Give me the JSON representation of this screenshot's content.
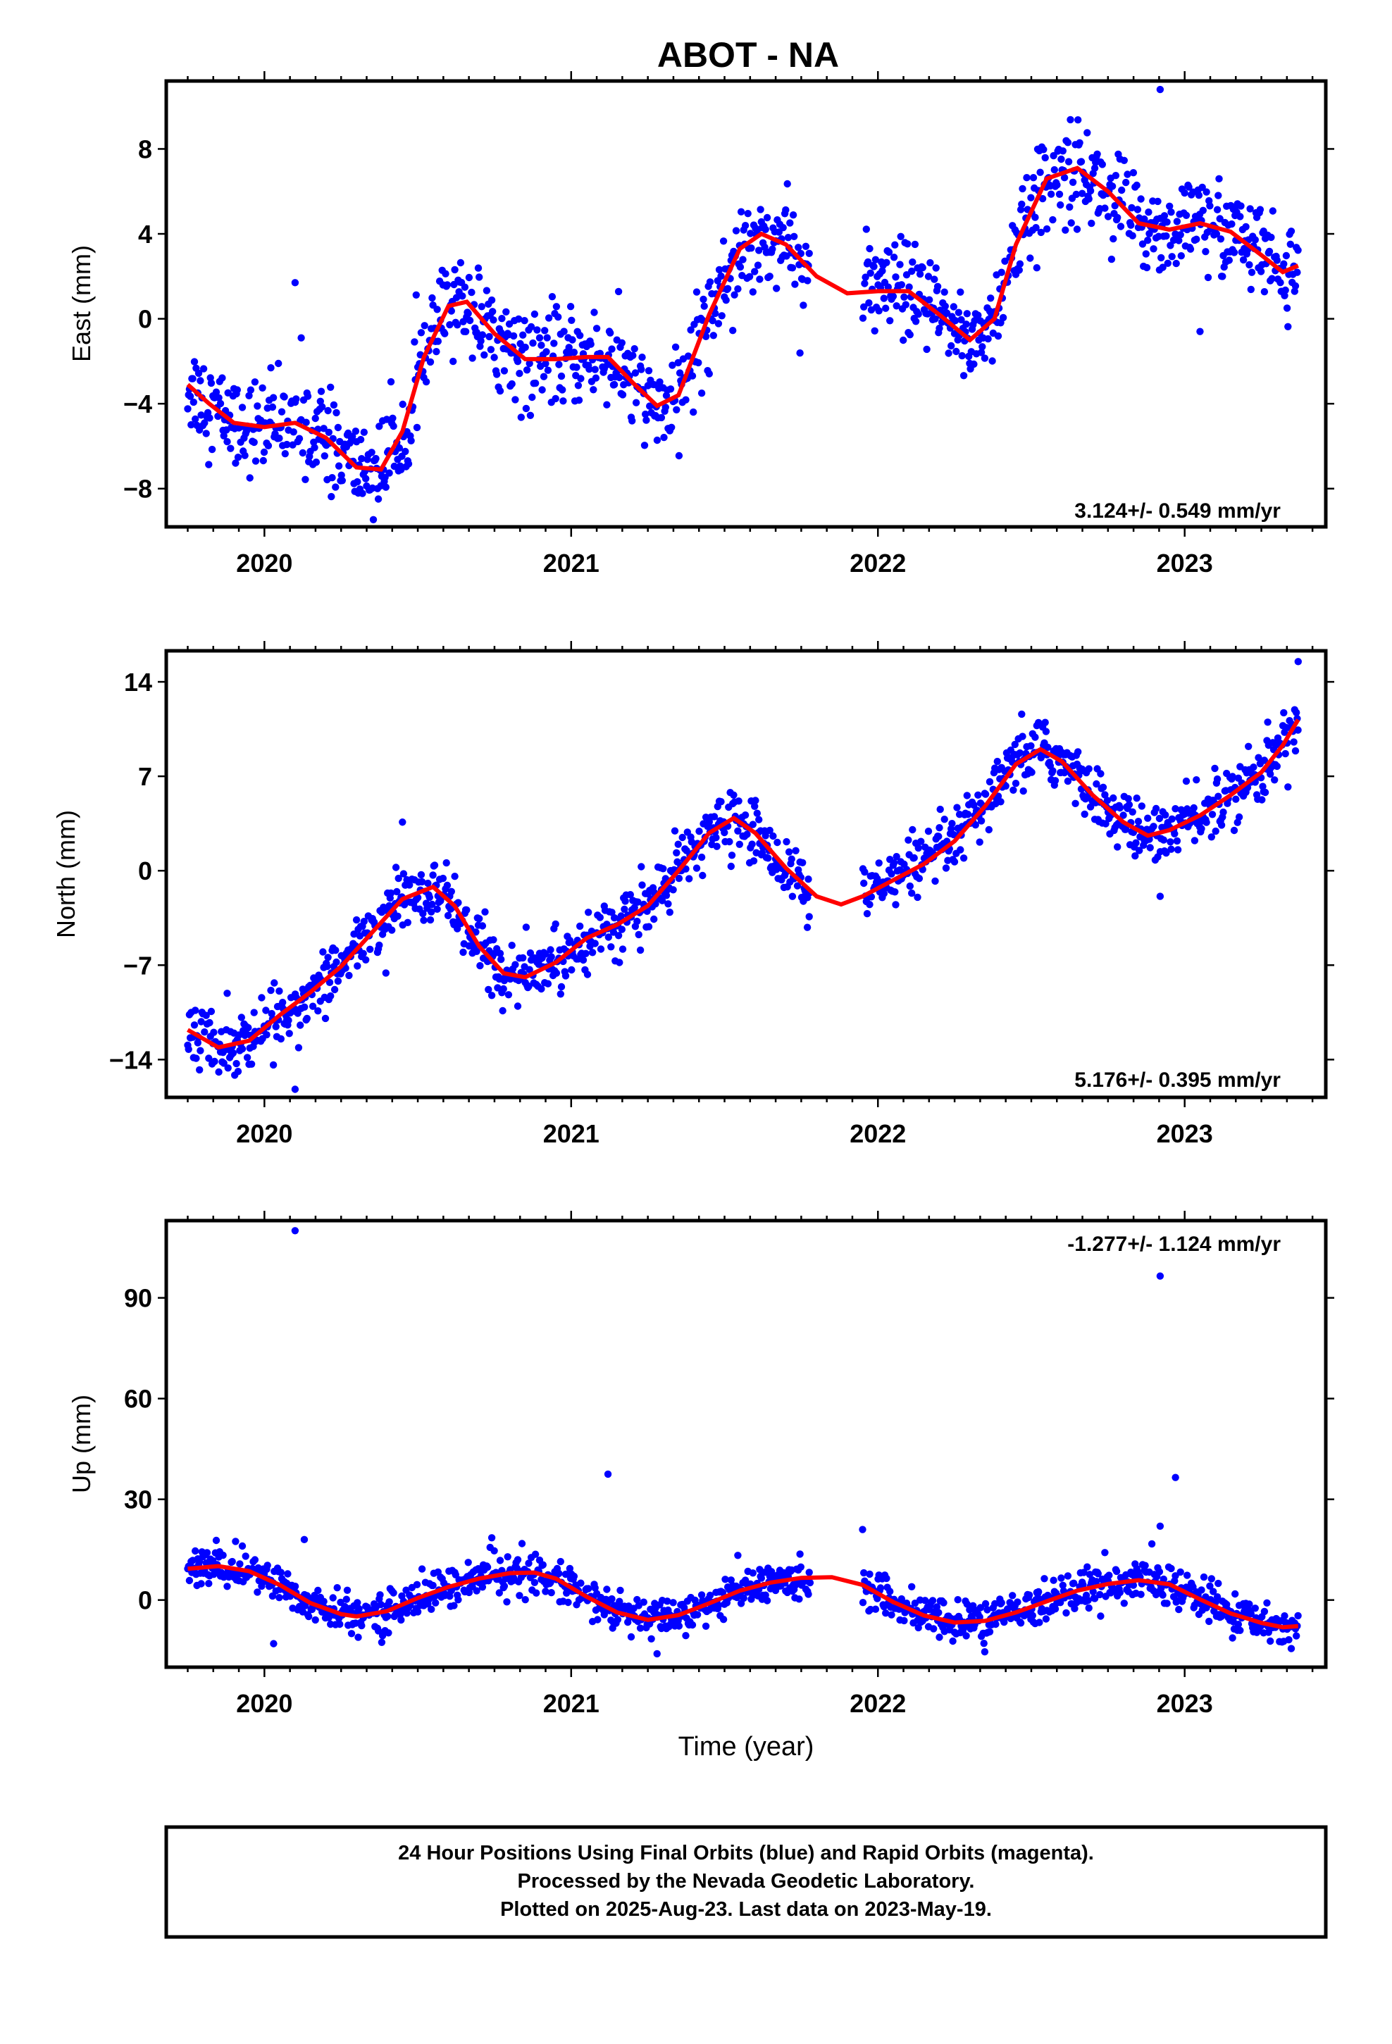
{
  "title": "ABOT - NA",
  "colors": {
    "points": "#0000ff",
    "model": "#ff0000",
    "frame": "#000000"
  },
  "chart_data": [
    {
      "type": "scatter",
      "name": "east",
      "ylabel": "East (mm)",
      "xlabel": "",
      "xlim": [
        2019.68,
        2023.46
      ],
      "ylim": [
        -9.8,
        11.2
      ],
      "yticks": [
        -8,
        -4,
        0,
        4,
        8
      ],
      "xticks": [
        2020,
        2021,
        2022,
        2023
      ],
      "rate_label": "3.124+/- 0.549 mm/yr",
      "trend": 3.124,
      "ref_year": 2021.6,
      "ref_value": 0.0,
      "jitter": 1.1,
      "model_curve": [
        [
          2019.75,
          -3.1
        ],
        [
          2019.82,
          -4.0
        ],
        [
          2019.9,
          -4.9
        ],
        [
          2020.0,
          -5.1
        ],
        [
          2020.1,
          -4.9
        ],
        [
          2020.2,
          -5.6
        ],
        [
          2020.3,
          -7.0
        ],
        [
          2020.38,
          -7.1
        ],
        [
          2020.45,
          -5.3
        ],
        [
          2020.52,
          -1.8
        ],
        [
          2020.6,
          0.6
        ],
        [
          2020.66,
          0.8
        ],
        [
          2020.75,
          -0.7
        ],
        [
          2020.85,
          -1.9
        ],
        [
          2020.95,
          -1.9
        ],
        [
          2021.05,
          -1.8
        ],
        [
          2021.12,
          -1.8
        ],
        [
          2021.2,
          -3.0
        ],
        [
          2021.28,
          -4.1
        ],
        [
          2021.35,
          -3.6
        ],
        [
          2021.45,
          0.2
        ],
        [
          2021.55,
          3.3
        ],
        [
          2021.62,
          4.0
        ],
        [
          2021.7,
          3.5
        ],
        [
          2021.8,
          2.0
        ],
        [
          2021.9,
          1.2
        ],
        [
          2022.0,
          1.3
        ],
        [
          2022.1,
          1.3
        ],
        [
          2022.2,
          0.2
        ],
        [
          2022.3,
          -1.0
        ],
        [
          2022.38,
          0.0
        ],
        [
          2022.45,
          3.5
        ],
        [
          2022.55,
          6.6
        ],
        [
          2022.65,
          7.1
        ],
        [
          2022.75,
          6.0
        ],
        [
          2022.85,
          4.5
        ],
        [
          2022.95,
          4.2
        ],
        [
          2023.05,
          4.5
        ],
        [
          2023.15,
          4.1
        ],
        [
          2023.25,
          3.0
        ],
        [
          2023.32,
          2.2
        ],
        [
          2023.37,
          2.5
        ]
      ],
      "outliers": [
        [
          2020.1,
          1.7
        ],
        [
          2020.12,
          -0.9
        ],
        [
          2022.92,
          10.8
        ],
        [
          2023.05,
          -0.6
        ]
      ]
    },
    {
      "type": "scatter",
      "name": "north",
      "ylabel": "North (mm)",
      "xlabel": "",
      "xlim": [
        2019.68,
        2023.46
      ],
      "ylim": [
        -16.8,
        16.3
      ],
      "yticks": [
        -14,
        -7,
        0,
        7,
        14
      ],
      "xticks": [
        2020,
        2021,
        2022,
        2023
      ],
      "rate_label": "5.176+/- 0.395 mm/yr",
      "trend": 5.176,
      "ref_year": 2021.6,
      "ref_value": 0.0,
      "jitter": 1.1,
      "model_curve": [
        [
          2019.75,
          -11.8
        ],
        [
          2019.85,
          -13.1
        ],
        [
          2019.95,
          -12.6
        ],
        [
          2020.05,
          -10.7
        ],
        [
          2020.15,
          -9.0
        ],
        [
          2020.25,
          -7.1
        ],
        [
          2020.35,
          -4.6
        ],
        [
          2020.45,
          -2.1
        ],
        [
          2020.55,
          -1.2
        ],
        [
          2020.62,
          -2.6
        ],
        [
          2020.7,
          -5.6
        ],
        [
          2020.78,
          -7.6
        ],
        [
          2020.85,
          -7.9
        ],
        [
          2020.95,
          -6.8
        ],
        [
          2021.05,
          -5.0
        ],
        [
          2021.15,
          -4.0
        ],
        [
          2021.25,
          -2.6
        ],
        [
          2021.35,
          0.0
        ],
        [
          2021.45,
          2.8
        ],
        [
          2021.53,
          3.9
        ],
        [
          2021.6,
          2.8
        ],
        [
          2021.7,
          0.2
        ],
        [
          2021.8,
          -1.9
        ],
        [
          2021.88,
          -2.5
        ],
        [
          2021.95,
          -1.9
        ],
        [
          2022.05,
          -0.7
        ],
        [
          2022.15,
          0.5
        ],
        [
          2022.25,
          2.2
        ],
        [
          2022.35,
          4.8
        ],
        [
          2022.45,
          7.9
        ],
        [
          2022.53,
          9.0
        ],
        [
          2022.6,
          8.1
        ],
        [
          2022.7,
          5.6
        ],
        [
          2022.8,
          3.6
        ],
        [
          2022.88,
          2.6
        ],
        [
          2022.95,
          3.0
        ],
        [
          2023.05,
          4.1
        ],
        [
          2023.15,
          5.6
        ],
        [
          2023.25,
          7.3
        ],
        [
          2023.32,
          9.3
        ],
        [
          2023.37,
          11.2
        ]
      ],
      "outliers": [
        [
          2020.1,
          -16.2
        ],
        [
          2020.45,
          3.6
        ],
        [
          2021.77,
          -4.2
        ],
        [
          2022.92,
          -1.9
        ],
        [
          2023.37,
          15.5
        ]
      ]
    },
    {
      "type": "scatter",
      "name": "up",
      "ylabel": "Up (mm)",
      "xlabel": "Time (year)",
      "xlim": [
        2019.68,
        2023.46
      ],
      "ylim": [
        -20.0,
        113.0
      ],
      "yticks": [
        0,
        30,
        60,
        90
      ],
      "xticks": [
        2020,
        2021,
        2022,
        2023
      ],
      "rate_label": "-1.277+/- 1.124 mm/yr",
      "trend": -1.277,
      "ref_year": 2021.6,
      "ref_value": 0.0,
      "jitter": 3.0,
      "model_curve": [
        [
          2019.75,
          9.3
        ],
        [
          2019.85,
          10.1
        ],
        [
          2019.95,
          8.6
        ],
        [
          2020.05,
          4.5
        ],
        [
          2020.15,
          -0.9
        ],
        [
          2020.25,
          -4.2
        ],
        [
          2020.3,
          -4.9
        ],
        [
          2020.4,
          -3.3
        ],
        [
          2020.5,
          0.6
        ],
        [
          2020.6,
          3.9
        ],
        [
          2020.7,
          6.4
        ],
        [
          2020.8,
          8.0
        ],
        [
          2020.88,
          8.2
        ],
        [
          2020.95,
          6.4
        ],
        [
          2021.05,
          1.0
        ],
        [
          2021.15,
          -3.7
        ],
        [
          2021.25,
          -5.9
        ],
        [
          2021.35,
          -4.5
        ],
        [
          2021.45,
          -1.0
        ],
        [
          2021.55,
          2.8
        ],
        [
          2021.65,
          5.2
        ],
        [
          2021.75,
          6.6
        ],
        [
          2021.85,
          6.8
        ],
        [
          2021.95,
          4.5
        ],
        [
          2022.05,
          -0.6
        ],
        [
          2022.15,
          -4.6
        ],
        [
          2022.25,
          -6.7
        ],
        [
          2022.35,
          -6.2
        ],
        [
          2022.45,
          -3.7
        ],
        [
          2022.55,
          -0.4
        ],
        [
          2022.65,
          2.8
        ],
        [
          2022.75,
          4.8
        ],
        [
          2022.85,
          5.9
        ],
        [
          2022.95,
          4.7
        ],
        [
          2023.05,
          0.2
        ],
        [
          2023.15,
          -4.0
        ],
        [
          2023.25,
          -6.8
        ],
        [
          2023.32,
          -8.1
        ],
        [
          2023.37,
          -7.8
        ]
      ],
      "outliers": [
        [
          2020.1,
          110.0
        ],
        [
          2021.12,
          37.5
        ],
        [
          2022.92,
          96.5
        ],
        [
          2022.97,
          36.5
        ],
        [
          2020.03,
          -13.0
        ],
        [
          2020.13,
          18.0
        ],
        [
          2021.95,
          21.0
        ],
        [
          2021.28,
          -16.0
        ],
        [
          2022.92,
          22.0
        ]
      ]
    }
  ],
  "footer": {
    "line1": "24 Hour Positions Using Final Orbits (blue) and Rapid Orbits (magenta).",
    "line2": "Processed by the Nevada Geodetic Laboratory.",
    "line3": "Plotted on 2025-Aug-23. Last data on 2023-May-19."
  }
}
